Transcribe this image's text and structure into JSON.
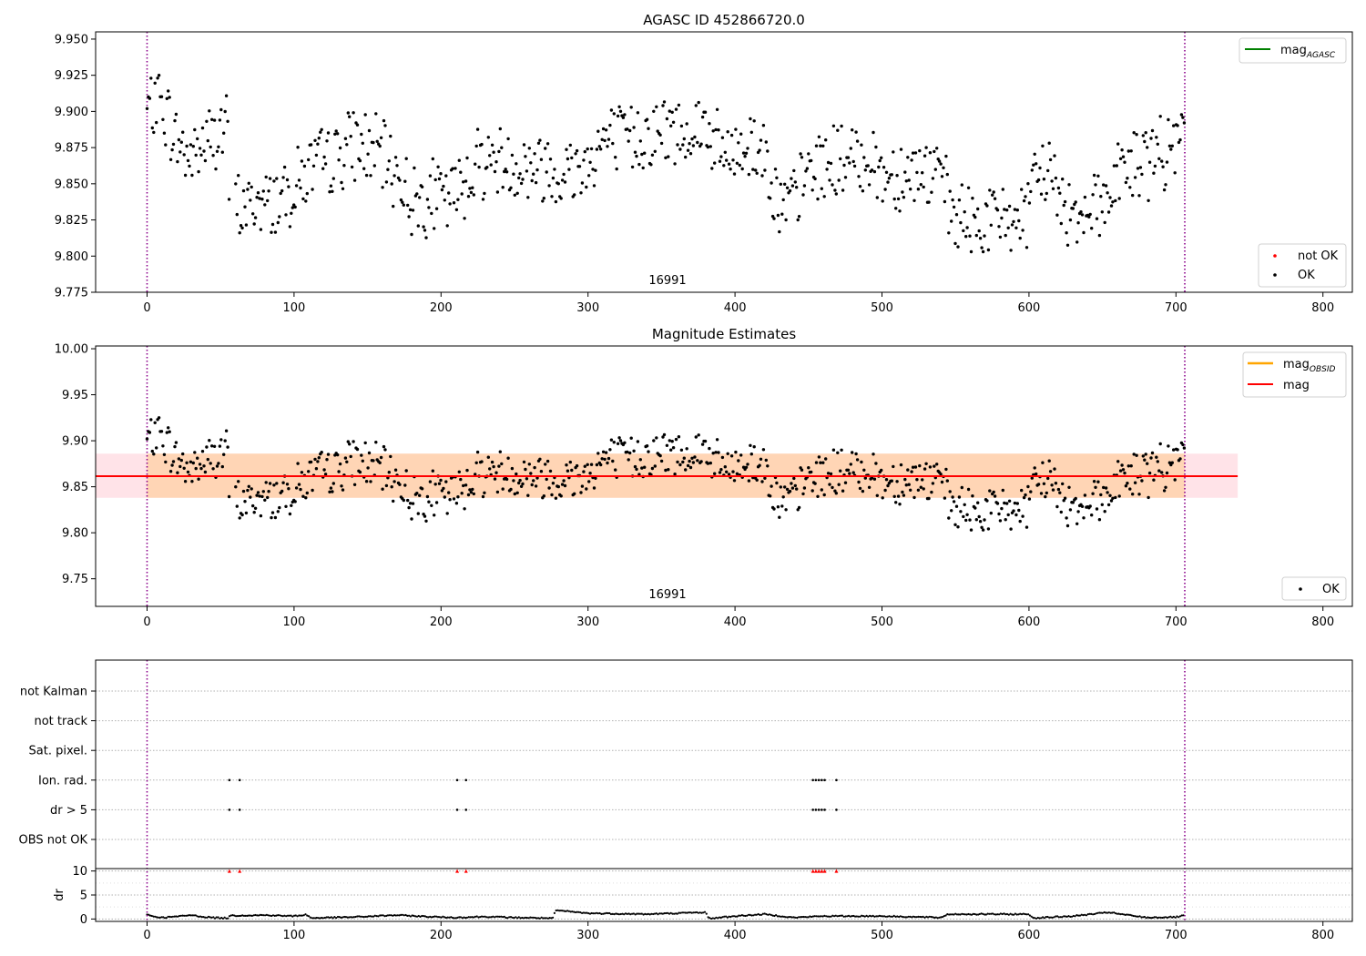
{
  "chart_data": [
    {
      "type": "scatter",
      "title": "AGASC ID 452866720.0",
      "annotation": "16991",
      "xlim": [
        -35,
        820
      ],
      "ylim": [
        9.775,
        9.955
      ],
      "xticks": [
        0,
        100,
        200,
        300,
        400,
        500,
        600,
        700,
        800
      ],
      "yticks": [
        9.775,
        9.8,
        9.825,
        9.85,
        9.875,
        9.9,
        9.925,
        9.95
      ],
      "ytick_labels": [
        "9.775",
        "9.800",
        "9.825",
        "9.850",
        "9.875",
        "9.900",
        "9.925",
        "9.950"
      ],
      "obsid_boundaries": [
        0,
        706
      ],
      "legend_top": {
        "entry": "mag",
        "subscript": "AGASC",
        "color": "#008000"
      },
      "legend_bottom": [
        {
          "name": "not OK",
          "color": "#ff0000"
        },
        {
          "name": "OK",
          "color": "#000000"
        }
      ],
      "series": [
        {
          "name": "OK",
          "color": "#000000",
          "trend": [
            [
              0,
              9.9
            ],
            [
              10,
              9.905
            ],
            [
              20,
              9.88
            ],
            [
              30,
              9.868
            ],
            [
              40,
              9.88
            ],
            [
              55,
              9.888
            ],
            [
              56,
              9.832
            ],
            [
              70,
              9.835
            ],
            [
              85,
              9.838
            ],
            [
              100,
              9.848
            ],
            [
              110,
              9.86
            ],
            [
              125,
              9.866
            ],
            [
              140,
              9.878
            ],
            [
              150,
              9.875
            ],
            [
              160,
              9.868
            ],
            [
              170,
              9.858
            ],
            [
              180,
              9.838
            ],
            [
              195,
              9.842
            ],
            [
              205,
              9.838
            ],
            [
              215,
              9.85
            ],
            [
              225,
              9.866
            ],
            [
              240,
              9.866
            ],
            [
              255,
              9.862
            ],
            [
              270,
              9.862
            ],
            [
              285,
              9.858
            ],
            [
              300,
              9.865
            ],
            [
              310,
              9.88
            ],
            [
              325,
              9.88
            ],
            [
              340,
              9.885
            ],
            [
              355,
              9.886
            ],
            [
              370,
              9.888
            ],
            [
              380,
              9.89
            ],
            [
              390,
              9.87
            ],
            [
              400,
              9.87
            ],
            [
              410,
              9.878
            ],
            [
              420,
              9.872
            ],
            [
              428,
              9.845
            ],
            [
              432,
              9.83
            ],
            [
              440,
              9.838
            ],
            [
              450,
              9.858
            ],
            [
              465,
              9.866
            ],
            [
              480,
              9.865
            ],
            [
              490,
              9.87
            ],
            [
              500,
              9.856
            ],
            [
              515,
              9.858
            ],
            [
              530,
              9.858
            ],
            [
              540,
              9.856
            ],
            [
              547,
              9.828
            ],
            [
              560,
              9.822
            ],
            [
              575,
              9.825
            ],
            [
              590,
              9.827
            ],
            [
              600,
              9.826
            ],
            [
              605,
              9.855
            ],
            [
              615,
              9.862
            ],
            [
              620,
              9.838
            ],
            [
              630,
              9.83
            ],
            [
              645,
              9.838
            ],
            [
              655,
              9.84
            ],
            [
              660,
              9.858
            ],
            [
              670,
              9.862
            ],
            [
              685,
              9.868
            ],
            [
              700,
              9.875
            ],
            [
              706,
              9.88
            ]
          ],
          "gaps": [
            [
              56,
              60
            ]
          ]
        },
        {
          "name": "not OK",
          "color": "#ff0000",
          "x": [],
          "y": []
        }
      ]
    },
    {
      "type": "scatter",
      "title": "Magnitude Estimates",
      "annotation": "16991",
      "xlim": [
        -35,
        820
      ],
      "ylim": [
        9.72,
        10.003
      ],
      "xticks": [
        0,
        100,
        200,
        300,
        400,
        500,
        600,
        700,
        800
      ],
      "yticks": [
        9.75,
        9.8,
        9.85,
        9.9,
        9.95,
        10.0
      ],
      "ytick_labels": [
        "9.75",
        "9.80",
        "9.85",
        "9.90",
        "9.95",
        "10.00"
      ],
      "obsid_boundaries": [
        0,
        706
      ],
      "mag_line": {
        "name": "mag",
        "value": 9.8615,
        "color": "#ff0000",
        "x_extent": [
          -35,
          742
        ]
      },
      "mag_band": {
        "low": 9.838,
        "high": 9.886,
        "x_extent": [
          -35,
          742
        ],
        "color": "#ffc0cb"
      },
      "obsid_band": {
        "name": "mag",
        "subscript": "OBSID",
        "low": 9.838,
        "high": 9.886,
        "x_extent": [
          0,
          706
        ],
        "color": "#ffa500"
      },
      "legend_top": [
        {
          "name": "mag",
          "subscript": "OBSID",
          "color": "#ffa500"
        },
        {
          "name": "mag",
          "subscript": "",
          "color": "#ff0000"
        }
      ],
      "legend_bottom": [
        {
          "name": "OK",
          "color": "#000000"
        }
      ],
      "series_ref": "same points as panel 1 (OK)"
    },
    {
      "type": "scatter",
      "title": "",
      "xlim": [
        -35,
        820
      ],
      "xticks": [
        0,
        100,
        200,
        300,
        400,
        500,
        600,
        700,
        800
      ],
      "obsid_boundaries": [
        0,
        706
      ],
      "flag_categories": [
        "not Kalman",
        "not track",
        "Sat. pixel.",
        "Ion. rad.",
        "dr > 5",
        "OBS not OK"
      ],
      "flag_points": {
        "Ion. rad.": [
          56,
          63,
          211,
          217,
          453,
          455,
          457,
          459,
          461,
          469
        ],
        "dr > 5": [
          56,
          63,
          211,
          217,
          453,
          455,
          457,
          459,
          461,
          469
        ]
      },
      "dr_subplot": {
        "ylabel": "dr",
        "ylim": [
          -0.5,
          10.5
        ],
        "yticks": [
          0,
          5,
          10
        ],
        "threshold_marks_at": 10,
        "threshold_marks_color": "#ff0000",
        "threshold_marks_x": [
          56,
          63,
          211,
          217,
          453,
          455,
          457,
          459,
          461,
          469
        ],
        "dr_trend": [
          [
            0,
            1.0
          ],
          [
            3,
            0.6
          ],
          [
            10,
            0.3
          ],
          [
            20,
            0.5
          ],
          [
            30,
            0.8
          ],
          [
            40,
            0.4
          ],
          [
            50,
            0.2
          ],
          [
            55,
            0.2
          ],
          [
            56,
            0.7
          ],
          [
            80,
            0.8
          ],
          [
            100,
            0.6
          ],
          [
            108,
            0.9
          ],
          [
            112,
            0.2
          ],
          [
            140,
            0.4
          ],
          [
            170,
            0.8
          ],
          [
            190,
            0.5
          ],
          [
            210,
            0.3
          ],
          [
            230,
            0.5
          ],
          [
            250,
            0.3
          ],
          [
            270,
            0.2
          ],
          [
            276,
            0.1
          ],
          [
            278,
            1.8
          ],
          [
            300,
            1.2
          ],
          [
            340,
            1.0
          ],
          [
            380,
            1.4
          ],
          [
            382,
            0.1
          ],
          [
            400,
            0.6
          ],
          [
            420,
            1.0
          ],
          [
            440,
            0.3
          ],
          [
            460,
            0.6
          ],
          [
            500,
            0.6
          ],
          [
            540,
            0.3
          ],
          [
            545,
            1.0
          ],
          [
            600,
            1.0
          ],
          [
            603,
            0.2
          ],
          [
            630,
            0.6
          ],
          [
            655,
            1.4
          ],
          [
            660,
            1.1
          ],
          [
            680,
            0.3
          ],
          [
            700,
            0.4
          ],
          [
            706,
            0.7
          ]
        ]
      }
    }
  ]
}
